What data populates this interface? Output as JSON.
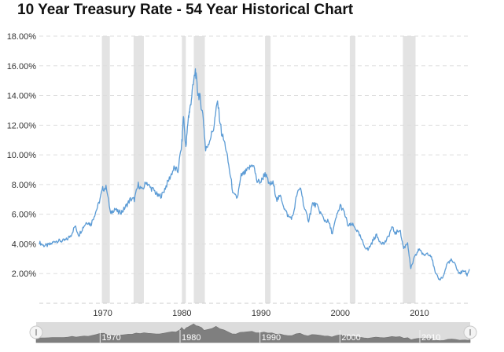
{
  "title": "10 Year Treasury Rate - 54 Year Historical Chart",
  "colors": {
    "line": "#5b9bd5",
    "recession": "#e3e3e3",
    "grid": "#dddddd",
    "navigator_area": "#7f7f7f",
    "navigator_bg": "#dcdcdc"
  },
  "chart_data": {
    "type": "line",
    "title": "10 Year Treasury Rate - 54 Year Historical Chart",
    "xlabel": "",
    "ylabel": "",
    "xlim": [
      1962,
      2016.3
    ],
    "ylim": [
      0,
      18
    ],
    "grid": true,
    "y_ticks": [
      2,
      4,
      6,
      8,
      10,
      12,
      14,
      16,
      18
    ],
    "y_tick_labels": [
      "2.00%",
      "4.00%",
      "6.00%",
      "8.00%",
      "10.00%",
      "12.00%",
      "14.00%",
      "16.00%",
      "18.00%"
    ],
    "x_ticks": [
      1970,
      1980,
      1990,
      2000,
      2010
    ],
    "x_tick_labels": [
      "1970",
      "1980",
      "1990",
      "2000",
      "2010"
    ],
    "recessions": [
      [
        1969.9,
        1970.9
      ],
      [
        1973.9,
        1975.2
      ],
      [
        1980.0,
        1980.5
      ],
      [
        1981.5,
        1982.9
      ],
      [
        1990.5,
        1991.2
      ],
      [
        2001.2,
        2001.9
      ],
      [
        2007.9,
        2009.5
      ]
    ],
    "series": [
      {
        "x": [
          1962.0,
          1962.5,
          1963.0,
          1963.5,
          1964.0,
          1964.5,
          1965.0,
          1965.5,
          1966.0,
          1966.5,
          1967.0,
          1967.5,
          1968.0,
          1968.5,
          1969.0,
          1969.5,
          1970.0,
          1970.5,
          1971.0,
          1971.5,
          1972.0,
          1972.5,
          1973.0,
          1973.5,
          1974.0,
          1974.5,
          1975.0,
          1975.5,
          1976.0,
          1976.5,
          1977.0,
          1977.5,
          1978.0,
          1978.5,
          1979.0,
          1979.5,
          1980.0,
          1980.2,
          1980.5,
          1980.8,
          1981.0,
          1981.3,
          1981.7,
          1982.0,
          1982.3,
          1982.7,
          1983.0,
          1983.5,
          1984.0,
          1984.5,
          1985.0,
          1985.5,
          1986.0,
          1986.5,
          1987.0,
          1987.5,
          1988.0,
          1988.5,
          1989.0,
          1989.5,
          1990.0,
          1990.5,
          1991.0,
          1991.5,
          1992.0,
          1992.5,
          1993.0,
          1993.5,
          1994.0,
          1994.5,
          1995.0,
          1995.5,
          1996.0,
          1996.5,
          1997.0,
          1997.5,
          1998.0,
          1998.5,
          1999.0,
          1999.5,
          2000.0,
          2000.5,
          2001.0,
          2001.5,
          2002.0,
          2002.5,
          2003.0,
          2003.5,
          2004.0,
          2004.5,
          2005.0,
          2005.5,
          2006.0,
          2006.5,
          2007.0,
          2007.5,
          2008.0,
          2008.5,
          2008.9,
          2009.3,
          2009.7,
          2010.0,
          2010.5,
          2011.0,
          2011.5,
          2012.0,
          2012.5,
          2013.0,
          2013.5,
          2014.0,
          2014.5,
          2015.0,
          2015.3,
          2015.7,
          2016.0,
          2016.3
        ],
        "values": [
          4.1,
          3.9,
          3.9,
          4.0,
          4.2,
          4.2,
          4.2,
          4.3,
          4.6,
          5.2,
          4.6,
          5.1,
          5.5,
          5.3,
          6.0,
          6.7,
          7.7,
          7.8,
          6.0,
          6.4,
          6.1,
          6.2,
          6.6,
          7.0,
          7.0,
          8.0,
          7.6,
          8.2,
          7.8,
          7.6,
          7.2,
          7.3,
          7.9,
          8.5,
          9.1,
          8.9,
          10.8,
          12.7,
          10.4,
          12.5,
          13.0,
          14.2,
          15.7,
          14.2,
          13.8,
          12.5,
          10.3,
          11.0,
          11.8,
          13.6,
          11.5,
          10.6,
          9.0,
          7.3,
          7.1,
          8.6,
          8.8,
          9.1,
          9.4,
          8.2,
          8.2,
          8.8,
          8.0,
          8.1,
          7.0,
          7.2,
          6.3,
          5.8,
          5.8,
          7.3,
          7.8,
          6.3,
          5.6,
          6.7,
          6.6,
          6.1,
          5.6,
          5.5,
          4.7,
          5.8,
          6.6,
          6.1,
          5.2,
          5.3,
          5.0,
          4.5,
          3.9,
          3.6,
          4.1,
          4.6,
          4.2,
          4.0,
          4.4,
          5.1,
          4.7,
          5.0,
          3.7,
          4.1,
          2.3,
          3.0,
          3.4,
          3.7,
          3.2,
          3.4,
          3.2,
          2.0,
          1.6,
          1.8,
          2.7,
          2.9,
          2.6,
          2.0,
          2.1,
          2.2,
          1.9,
          2.3
        ]
      }
    ],
    "navigator": {
      "x_ticks": [
        1970,
        1980,
        1990,
        2000,
        2010
      ],
      "x_tick_labels": [
        "1970",
        "1980",
        "1990",
        "2000",
        "2010"
      ]
    }
  }
}
